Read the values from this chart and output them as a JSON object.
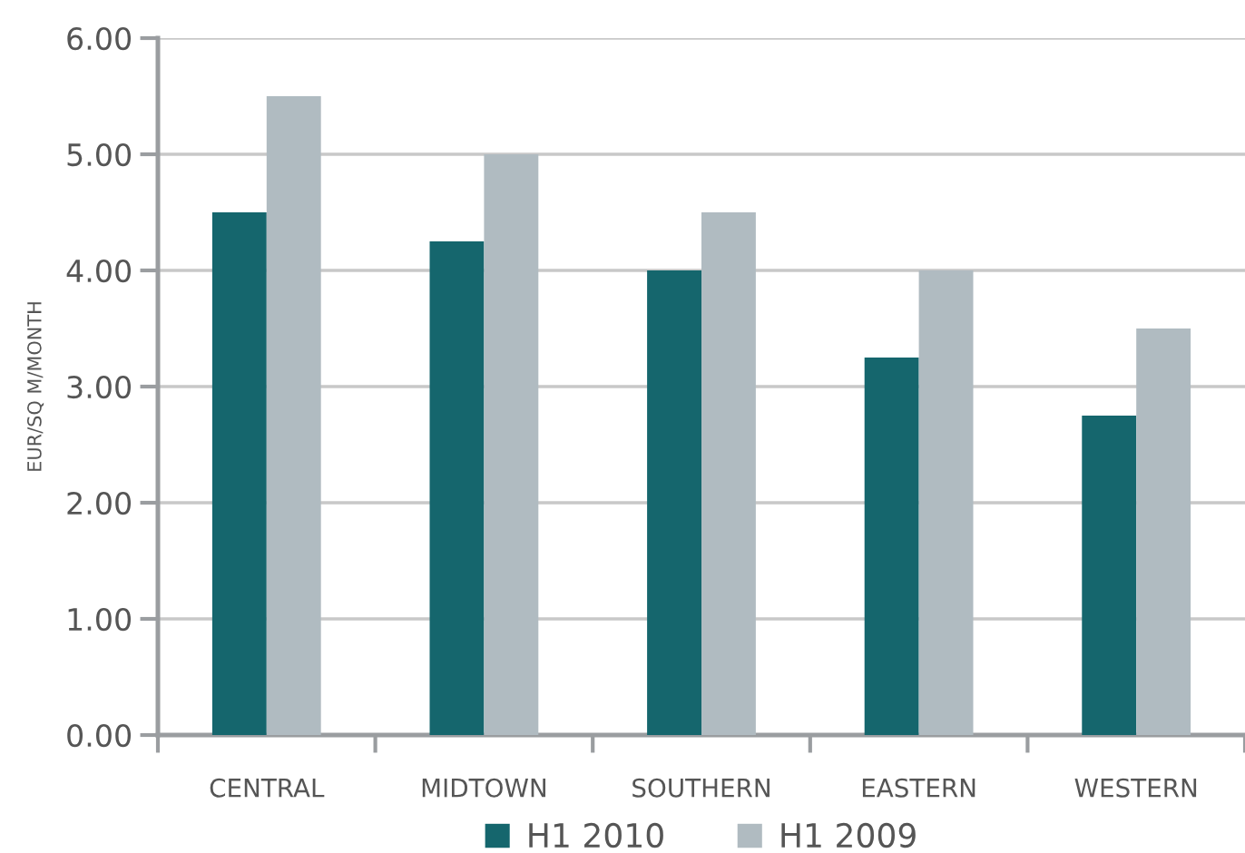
{
  "chart_data": {
    "type": "bar",
    "ylabel": "EUR/SQ M/MONTH",
    "categories": [
      "CENTRAL",
      "MIDTOWN",
      "SOUTHERN",
      "EASTERN",
      "WESTERN"
    ],
    "series": [
      {
        "name": "H1 2010",
        "color": "#15666d",
        "values": [
          4.5,
          4.25,
          4.0,
          3.25,
          2.75
        ]
      },
      {
        "name": "H1 2009",
        "color": "#b0bbc1",
        "values": [
          5.5,
          5.0,
          4.5,
          4.0,
          3.5
        ]
      }
    ],
    "ylim": [
      0,
      6
    ],
    "yticks": [
      {
        "value": 0,
        "label": "0.00"
      },
      {
        "value": 1,
        "label": "1.00"
      },
      {
        "value": 2,
        "label": "2.00"
      },
      {
        "value": 3,
        "label": "3.00"
      },
      {
        "value": 4,
        "label": "4.00"
      },
      {
        "value": 5,
        "label": "5.00"
      },
      {
        "value": 6,
        "label": "6.00"
      }
    ],
    "grid": "y",
    "legend": "bottom"
  }
}
